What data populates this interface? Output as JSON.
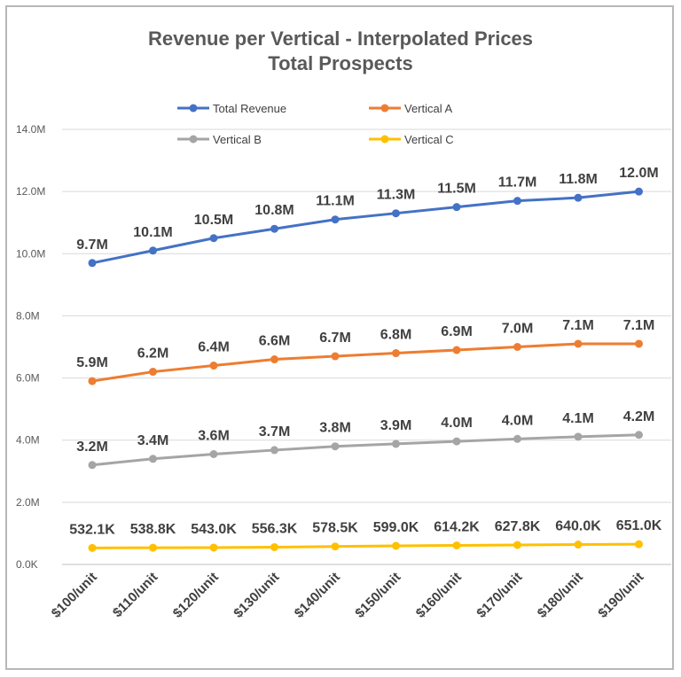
{
  "chart_data": {
    "type": "line",
    "title": "Revenue  per Vertical  - Interpolated Prices",
    "subtitle": "Total Prospects",
    "xlabel": "",
    "ylabel": "",
    "categories": [
      "$100/unit",
      "$110/unit",
      "$120/unit",
      "$130/unit",
      "$140/unit",
      "$150/unit",
      "$160/unit",
      "$170/unit",
      "$180/unit",
      "$190/unit"
    ],
    "y_ticks": [
      {
        "value": 0,
        "label": "0.0K"
      },
      {
        "value": 2000000,
        "label": "2.0M"
      },
      {
        "value": 4000000,
        "label": "4.0M"
      },
      {
        "value": 6000000,
        "label": "6.0M"
      },
      {
        "value": 8000000,
        "label": "8.0M"
      },
      {
        "value": 10000000,
        "label": "10.0M"
      },
      {
        "value": 12000000,
        "label": "12.0M"
      },
      {
        "value": 14000000,
        "label": "14.0M"
      }
    ],
    "ylim": [
      0,
      14000000
    ],
    "grid": "horizontal",
    "legend_position": "top",
    "series": [
      {
        "name": "Total Revenue",
        "color": "#4472C4",
        "values": [
          9700000,
          10100000,
          10500000,
          10800000,
          11100000,
          11300000,
          11500000,
          11700000,
          11800000,
          12000000
        ],
        "labels": [
          "9.7M",
          "10.1M",
          "10.5M",
          "10.8M",
          "11.1M",
          "11.3M",
          "11.5M",
          "11.7M",
          "11.8M",
          "12.0M"
        ]
      },
      {
        "name": "Vertical A",
        "color": "#ED7D31",
        "values": [
          5900000,
          6200000,
          6400000,
          6600000,
          6700000,
          6800000,
          6900000,
          7000000,
          7100000,
          7100000
        ],
        "labels": [
          "5.9M",
          "6.2M",
          "6.4M",
          "6.6M",
          "6.7M",
          "6.8M",
          "6.9M",
          "7.0M",
          "7.1M",
          "7.1M"
        ]
      },
      {
        "name": "Vertical B",
        "color": "#A5A5A5",
        "values": [
          3200000,
          3400000,
          3550000,
          3680000,
          3800000,
          3880000,
          3960000,
          4040000,
          4110000,
          4170000
        ],
        "labels": [
          "3.2M",
          "3.4M",
          "3.6M",
          "3.7M",
          "3.8M",
          "3.9M",
          "4.0M",
          "4.0M",
          "4.1M",
          "4.2M"
        ]
      },
      {
        "name": "Vertical C",
        "color": "#FFC000",
        "values": [
          532100,
          538800,
          543000,
          556300,
          578500,
          599000,
          614200,
          627800,
          640000,
          651000
        ],
        "labels": [
          "532.1K",
          "538.8K",
          "543.0K",
          "556.3K",
          "578.5K",
          "599.0K",
          "614.2K",
          "627.8K",
          "640.0K",
          "651.0K"
        ]
      }
    ]
  }
}
